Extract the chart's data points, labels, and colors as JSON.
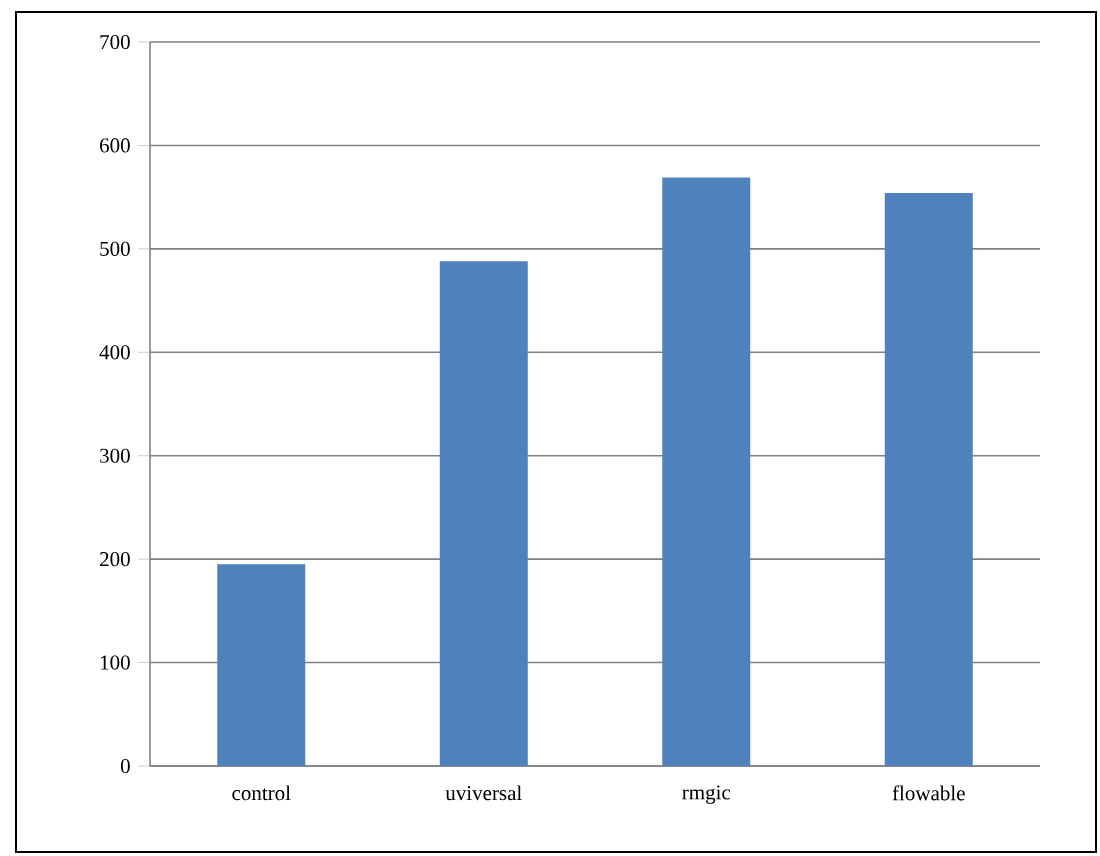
{
  "chart_data": {
    "type": "bar",
    "categories": [
      "control",
      "uviversal",
      "rmgic",
      "flowable"
    ],
    "values": [
      195,
      488,
      569,
      554
    ],
    "color": "#4f81bd",
    "ylim": [
      0,
      700
    ],
    "yticks": [
      0,
      100,
      200,
      300,
      400,
      500,
      600,
      700
    ],
    "grid": "y"
  }
}
